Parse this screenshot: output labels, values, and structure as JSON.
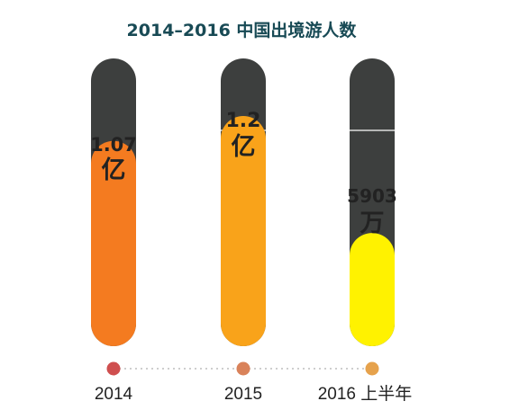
{
  "chart_data": {
    "type": "bar",
    "title": "2014–2016 中国出境游人数",
    "categories": [
      "2014",
      "2015",
      "2016 上半年"
    ],
    "values": [
      107000000,
      120000000,
      59030000
    ],
    "value_labels": [
      {
        "number": "1.07",
        "unit": "亿"
      },
      {
        "number": "1.2",
        "unit": "亿"
      },
      {
        "number": "5903",
        "unit": "万"
      }
    ],
    "ylim": [
      0,
      150000000
    ],
    "grid": false,
    "legend": "none",
    "colors": {
      "track": "#3d3f3e",
      "bars": [
        "#f47b20",
        "#f9a31a",
        "#fff200"
      ],
      "dots": [
        "#cf4f4f",
        "#d9825a",
        "#e6a24c"
      ],
      "divider": "#ffffff",
      "connector": "#bdbdbd",
      "title": "#184a55"
    }
  }
}
